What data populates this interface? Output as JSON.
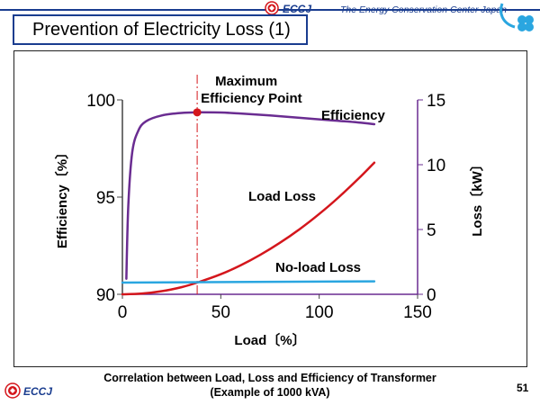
{
  "header": {
    "title": "Prevention of Electricity Loss (1)",
    "org_name": "The Energy Conservation Center Japan",
    "logo_text": "ECCJ"
  },
  "footer": {
    "caption_line1": "Correlation between Load, Loss and Efficiency of Transformer",
    "caption_line2": "(Example of 1000 kVA)",
    "logo_text": "ECCJ",
    "page_number": "51"
  },
  "chart_data": {
    "type": "line",
    "xlabel": "Load〔%〕",
    "ylabel_left": "Efficiency〔%〕",
    "ylabel_right": "Loss〔kW〕",
    "x_ticks": [
      "0",
      "50",
      "100",
      "150"
    ],
    "y_left_ticks": [
      "90",
      "95",
      "100"
    ],
    "y_right_ticks": [
      "0",
      "5",
      "10",
      "15"
    ],
    "xlim": [
      0,
      150
    ],
    "ylim_left": [
      90,
      100
    ],
    "ylim_right": [
      0,
      15
    ],
    "grid": false,
    "series": [
      {
        "name": "Efficiency",
        "axis": "left",
        "color": "#6a2c91",
        "x": [
          2,
          3,
          5,
          8,
          12,
          20,
          30,
          38,
          50,
          60,
          75,
          90,
          105,
          120,
          128
        ],
        "y": [
          90.8,
          94.6,
          97.3,
          98.4,
          98.9,
          99.2,
          99.33,
          99.36,
          99.35,
          99.3,
          99.2,
          99.08,
          98.96,
          98.84,
          98.75
        ]
      },
      {
        "name": "Load Loss",
        "axis": "right",
        "color": "#d4161c",
        "x": [
          0,
          10,
          20,
          30,
          38,
          50,
          60,
          70,
          80,
          90,
          100,
          110,
          120,
          128
        ],
        "y": [
          0,
          0.06,
          0.24,
          0.55,
          0.9,
          1.55,
          2.23,
          3.04,
          3.97,
          5.02,
          6.2,
          7.5,
          8.93,
          10.16
        ]
      },
      {
        "name": "No-load Loss",
        "axis": "right",
        "color": "#2aa6e0",
        "x": [
          0,
          128
        ],
        "y": [
          0.9,
          1.0
        ]
      }
    ],
    "annotations": [
      {
        "text": "Maximum",
        "x": 38
      },
      {
        "text": "Efficiency Point",
        "x": 38
      },
      {
        "text": "Efficiency"
      },
      {
        "text": "Load Loss"
      },
      {
        "text": "No-load Loss"
      }
    ],
    "max_efficiency_point": {
      "x": 38,
      "y": 99.36
    }
  }
}
